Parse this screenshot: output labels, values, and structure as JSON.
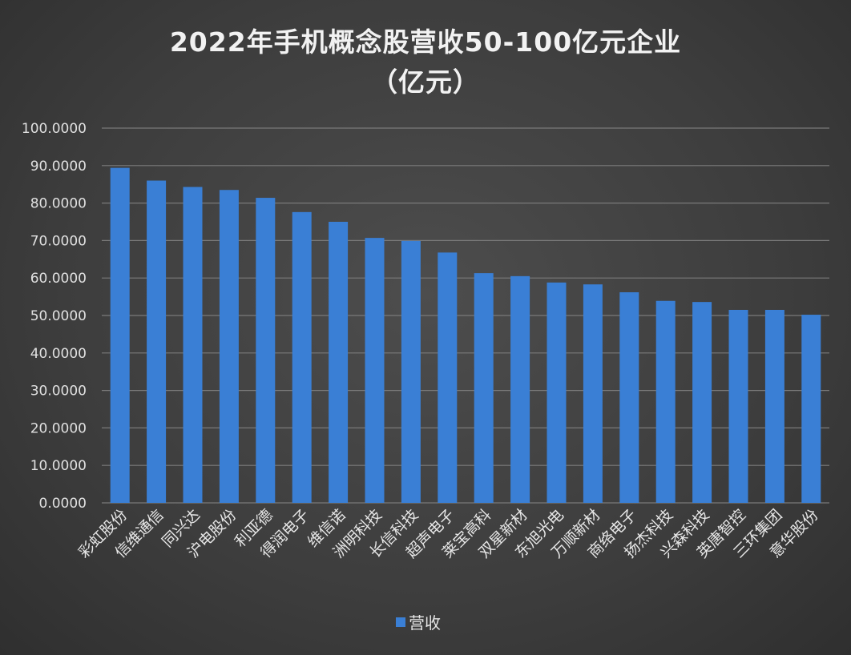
{
  "chart_data": {
    "type": "bar",
    "title": "2022年手机概念股营收50-100亿元企业",
    "subtitle": "（亿元）",
    "xlabel": "",
    "ylabel": "",
    "ylim": [
      0,
      100
    ],
    "yticks": [
      "0.0000",
      "10.0000",
      "20.0000",
      "30.0000",
      "40.0000",
      "50.0000",
      "60.0000",
      "70.0000",
      "80.0000",
      "90.0000",
      "100.0000"
    ],
    "grid": true,
    "legend": "bottom",
    "categories": [
      "彩虹股份",
      "信维通信",
      "同兴达",
      "沪电股份",
      "利亚德",
      "得润电子",
      "维信诺",
      "洲明科技",
      "长信科技",
      "超声电子",
      "莱宝高科",
      "双星新材",
      "东旭光电",
      "万顺新材",
      "商络电子",
      "扬杰科技",
      "兴森科技",
      "英唐智控",
      "三环集团",
      "意华股份"
    ],
    "series": [
      {
        "name": "营收",
        "color": "#3a7fd5",
        "values": [
          89.4,
          86.0,
          84.3,
          83.5,
          81.4,
          77.6,
          75.0,
          70.7,
          69.9,
          66.8,
          61.3,
          60.5,
          58.8,
          58.3,
          56.2,
          53.9,
          53.6,
          51.5,
          51.5,
          50.2
        ]
      }
    ]
  }
}
